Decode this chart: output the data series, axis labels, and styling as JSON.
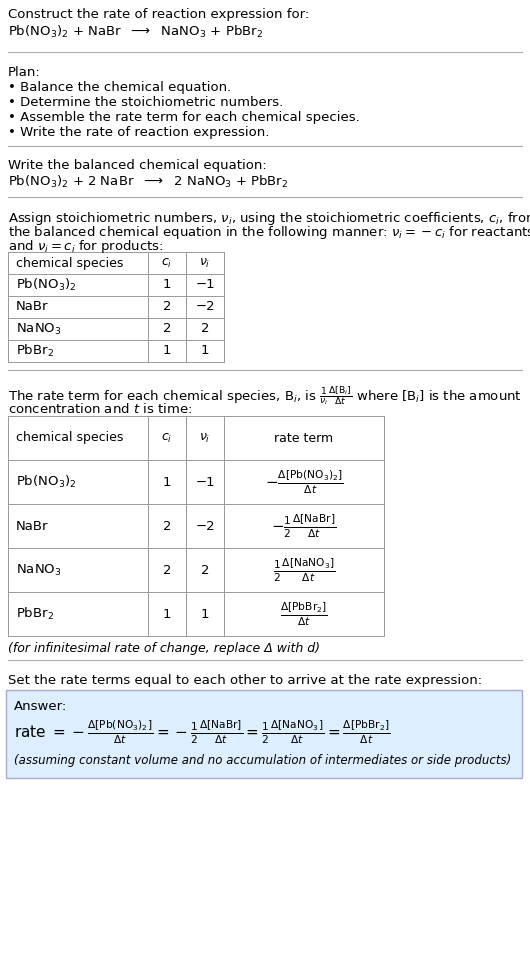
{
  "bg_color": "#ffffff",
  "text_color": "#000000",
  "font_size": 9.5,
  "table_font_size": 9.5,
  "title_line1": "Construct the rate of reaction expression for:",
  "plan_header": "Plan:",
  "plan_items": [
    "• Balance the chemical equation.",
    "• Determine the stoichiometric numbers.",
    "• Assemble the rate term for each chemical species.",
    "• Write the rate of reaction expression."
  ],
  "balanced_header": "Write the balanced chemical equation:",
  "set_equal_text": "Set the rate terms equal to each other to arrive at the rate expression:",
  "answer_label": "Answer:",
  "answer_note": "(assuming constant volume and no accumulation of intermediates or side products)",
  "infinitesimal_note": "(for infinitesimal rate of change, replace Δ with d)",
  "answer_bg": "#ddeeff",
  "answer_border": "#aaaacc",
  "table_line_color": "#999999",
  "section_line_color": "#aaaaaa"
}
